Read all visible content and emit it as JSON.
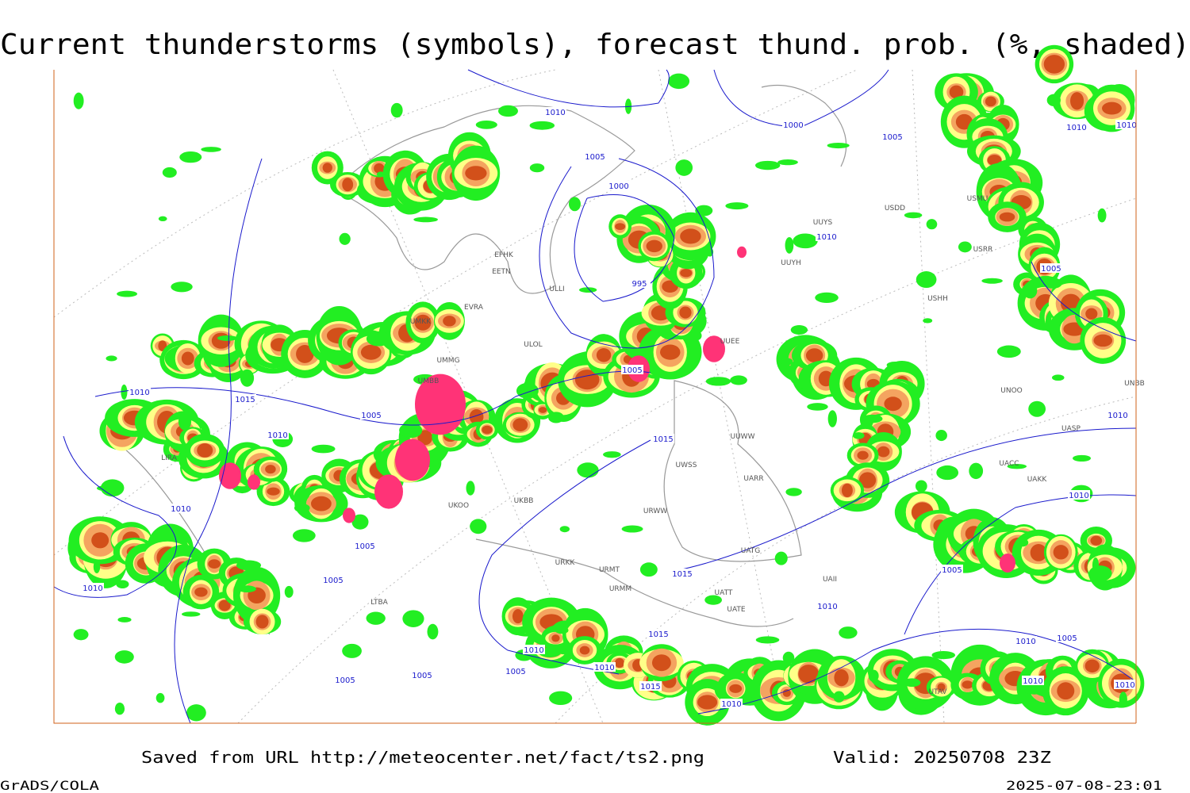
{
  "header": {
    "title": "Current thunderstorms (symbols), forecast thund. prob. (%, shaded)"
  },
  "map": {
    "isobar_labels": [
      1010,
      1000,
      1005,
      1010,
      1010,
      1005,
      1000,
      1010,
      995,
      1005,
      1005,
      1010,
      1015,
      1005,
      1010,
      1015,
      1010,
      1010,
      1010,
      1005,
      1005,
      1010,
      1015,
      1005,
      1010,
      1015,
      1010,
      1005,
      1010,
      1005,
      1005,
      1010,
      1015,
      1005,
      1010,
      1010,
      1010
    ],
    "stations": [
      "UMKK",
      "ULOL",
      "UMMG",
      "UMBB",
      "EFHK",
      "EETN",
      "ULLI",
      "EVRA",
      "UUYS",
      "UUYH",
      "USHH",
      "USDD",
      "USMU",
      "USRR",
      "UUEE",
      "UUWW",
      "UWSS",
      "UARR",
      "UACC",
      "UAKK",
      "UNOO",
      "UASP",
      "UKOO",
      "UKBB",
      "URKK",
      "URMT",
      "URMM",
      "URWW",
      "UATG",
      "UATE",
      "UATT",
      "LTBA",
      "LIRA",
      "UAII",
      "UTAV",
      "UNBB"
    ]
  },
  "footer": {
    "source": "Saved from URL http://meteocenter.net/fact/ts2.png",
    "valid": "Valid: 20250708 23Z",
    "software": "GrADS/COLA",
    "timestamp": "2025-07-08-23:01"
  }
}
